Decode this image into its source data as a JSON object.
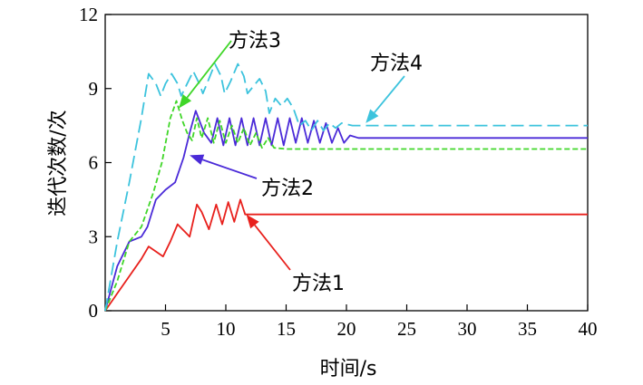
{
  "chart_data": {
    "type": "line",
    "title": "",
    "xlabel": "时间/s",
    "ylabel": "迭代次数/次",
    "xlim": [
      0,
      40
    ],
    "ylim": [
      0,
      12
    ],
    "xticks": [
      "5",
      "10",
      "15",
      "20",
      "25",
      "30",
      "35",
      "40"
    ],
    "xtick_values": [
      5,
      10,
      15,
      20,
      25,
      30,
      35,
      40
    ],
    "yticks": [
      "0",
      "3",
      "6",
      "9",
      "12"
    ],
    "ytick_values": [
      0,
      3,
      6,
      9,
      12
    ],
    "grid": false,
    "series": [
      {
        "name": "方法1",
        "color": "#e8201c",
        "dash": "solid",
        "points": [
          [
            0,
            0
          ],
          [
            1,
            0.7
          ],
          [
            2,
            1.4
          ],
          [
            3,
            2.1
          ],
          [
            3.6,
            2.6
          ],
          [
            4.2,
            2.4
          ],
          [
            4.8,
            2.2
          ],
          [
            5.4,
            2.8
          ],
          [
            6,
            3.5
          ],
          [
            6.6,
            3.2
          ],
          [
            7,
            3.0
          ],
          [
            7.6,
            4.3
          ],
          [
            8,
            4.0
          ],
          [
            8.6,
            3.3
          ],
          [
            9.2,
            4.3
          ],
          [
            9.7,
            3.5
          ],
          [
            10.2,
            4.4
          ],
          [
            10.7,
            3.6
          ],
          [
            11.2,
            4.5
          ],
          [
            11.6,
            3.9
          ],
          [
            12,
            3.9
          ],
          [
            20,
            3.9
          ],
          [
            30,
            3.9
          ],
          [
            40,
            3.9
          ]
        ]
      },
      {
        "name": "方法2",
        "color": "#4a2ad8",
        "dash": "solid",
        "points": [
          [
            0,
            0
          ],
          [
            1,
            1.8
          ],
          [
            2,
            2.8
          ],
          [
            3,
            3.0
          ],
          [
            3.5,
            3.4
          ],
          [
            4.2,
            4.5
          ],
          [
            5,
            4.9
          ],
          [
            5.8,
            5.2
          ],
          [
            6.5,
            6.2
          ],
          [
            7,
            7.2
          ],
          [
            7.5,
            8.1
          ],
          [
            8.2,
            7.2
          ],
          [
            8.8,
            6.8
          ],
          [
            9.3,
            7.8
          ],
          [
            9.8,
            6.7
          ],
          [
            10.3,
            7.8
          ],
          [
            10.8,
            6.7
          ],
          [
            11.3,
            7.8
          ],
          [
            11.8,
            6.7
          ],
          [
            12.3,
            7.8
          ],
          [
            12.8,
            6.7
          ],
          [
            13.3,
            7.8
          ],
          [
            13.8,
            6.7
          ],
          [
            14.3,
            7.8
          ],
          [
            14.8,
            6.7
          ],
          [
            15.3,
            7.8
          ],
          [
            15.8,
            6.8
          ],
          [
            16.3,
            7.8
          ],
          [
            16.8,
            6.8
          ],
          [
            17.3,
            7.7
          ],
          [
            17.8,
            6.8
          ],
          [
            18.3,
            7.6
          ],
          [
            18.8,
            6.8
          ],
          [
            19.3,
            7.4
          ],
          [
            19.8,
            6.8
          ],
          [
            20.3,
            7.1
          ],
          [
            21,
            7.0
          ],
          [
            30,
            7.0
          ],
          [
            40,
            7.0
          ]
        ]
      },
      {
        "name": "方法3",
        "color": "#3fd628",
        "dash": "dashed",
        "points": [
          [
            0,
            0
          ],
          [
            1,
            1.2
          ],
          [
            2,
            2.8
          ],
          [
            3,
            3.4
          ],
          [
            4,
            4.8
          ],
          [
            4.7,
            6.0
          ],
          [
            5.4,
            7.8
          ],
          [
            5.9,
            8.5
          ],
          [
            6.4,
            7.7
          ],
          [
            6.8,
            7.2
          ],
          [
            7.2,
            6.9
          ],
          [
            7.6,
            7.8
          ],
          [
            8,
            7.0
          ],
          [
            8.5,
            7.8
          ],
          [
            9,
            6.8
          ],
          [
            9.5,
            7.7
          ],
          [
            10,
            6.8
          ],
          [
            10.5,
            7.5
          ],
          [
            11,
            6.8
          ],
          [
            11.5,
            7.4
          ],
          [
            12,
            6.7
          ],
          [
            12.5,
            7.2
          ],
          [
            13,
            6.6
          ],
          [
            13.5,
            7.0
          ],
          [
            14,
            6.6
          ],
          [
            15,
            6.55
          ],
          [
            20,
            6.55
          ],
          [
            30,
            6.55
          ],
          [
            40,
            6.55
          ]
        ]
      },
      {
        "name": "方法4",
        "color": "#3cc3dd",
        "dash": "dashed",
        "points": [
          [
            0,
            0
          ],
          [
            1,
            2.8
          ],
          [
            2,
            5.2
          ],
          [
            3,
            7.8
          ],
          [
            3.6,
            9.6
          ],
          [
            4.2,
            9.2
          ],
          [
            4.6,
            8.7
          ],
          [
            5,
            9.2
          ],
          [
            5.5,
            9.6
          ],
          [
            6,
            9.2
          ],
          [
            6.3,
            8.7
          ],
          [
            6.8,
            9.2
          ],
          [
            7.3,
            9.7
          ],
          [
            7.8,
            9.2
          ],
          [
            8.1,
            8.8
          ],
          [
            8.6,
            9.4
          ],
          [
            9.1,
            10.0
          ],
          [
            9.6,
            9.5
          ],
          [
            9.9,
            8.8
          ],
          [
            10.4,
            9.3
          ],
          [
            11,
            10.0
          ],
          [
            11.5,
            9.5
          ],
          [
            11.8,
            8.8
          ],
          [
            12.3,
            9.1
          ],
          [
            12.8,
            9.4
          ],
          [
            13.3,
            8.9
          ],
          [
            13.6,
            8.0
          ],
          [
            14.1,
            8.6
          ],
          [
            14.6,
            8.3
          ],
          [
            15.1,
            8.6
          ],
          [
            15.6,
            8.2
          ],
          [
            16.1,
            7.5
          ],
          [
            16.6,
            7.7
          ],
          [
            17.1,
            7.3
          ],
          [
            17.6,
            7.7
          ],
          [
            18.1,
            7.3
          ],
          [
            18.6,
            7.6
          ],
          [
            19.1,
            7.4
          ],
          [
            19.6,
            7.6
          ],
          [
            20.5,
            7.5
          ],
          [
            30,
            7.5
          ],
          [
            40,
            7.5
          ]
        ]
      }
    ],
    "annotations": [
      {
        "text": "方法1",
        "target": [
          11.7,
          3.9
        ],
        "color": "#e8201c"
      },
      {
        "text": "方法2",
        "target": [
          7.0,
          6.3
        ],
        "color": "#4a2ad8"
      },
      {
        "text": "方法3",
        "target": [
          6.1,
          8.2
        ],
        "color": "#3fd628"
      },
      {
        "text": "方法4",
        "target": [
          21.6,
          7.6
        ],
        "color": "#3cc3dd"
      }
    ]
  }
}
